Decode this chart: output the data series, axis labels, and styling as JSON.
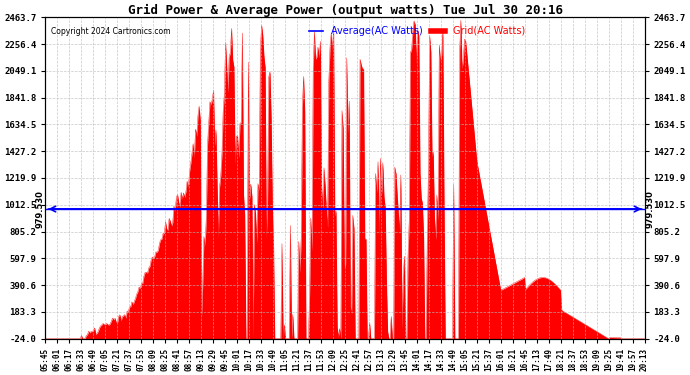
{
  "title": "Grid Power & Average Power (output watts) Tue Jul 30 20:16",
  "copyright": "Copyright 2024 Cartronics.com",
  "y_min": -24.0,
  "y_max": 2463.7,
  "y_ticks": [
    -24.0,
    183.3,
    390.6,
    597.9,
    805.2,
    1012.5,
    1219.9,
    1427.2,
    1634.5,
    1841.8,
    2049.1,
    2256.4,
    2463.7
  ],
  "average_line_y": 979.53,
  "average_label": "979.530",
  "grid_color": "#FF0000",
  "avg_line_color": "#0000FF",
  "background_color": "#FFFFFF",
  "grid_line_color": "#BBBBBB",
  "legend_avg_color": "#0000FF",
  "legend_grid_color": "#FF0000",
  "x_tick_labels": [
    "05:45",
    "06:01",
    "06:17",
    "06:33",
    "06:49",
    "07:05",
    "07:21",
    "07:37",
    "07:53",
    "08:09",
    "08:25",
    "08:41",
    "08:57",
    "09:13",
    "09:29",
    "09:45",
    "10:01",
    "10:17",
    "10:33",
    "10:49",
    "11:05",
    "11:21",
    "11:37",
    "11:53",
    "12:09",
    "12:25",
    "12:41",
    "12:57",
    "13:13",
    "13:29",
    "13:45",
    "14:01",
    "14:17",
    "14:33",
    "14:49",
    "15:05",
    "15:21",
    "15:37",
    "16:01",
    "16:21",
    "16:45",
    "17:13",
    "17:49",
    "18:21",
    "18:37",
    "18:53",
    "19:09",
    "19:25",
    "19:41",
    "19:57",
    "20:13"
  ],
  "n_dense": 500,
  "figsize": [
    6.9,
    3.75
  ],
  "dpi": 100
}
